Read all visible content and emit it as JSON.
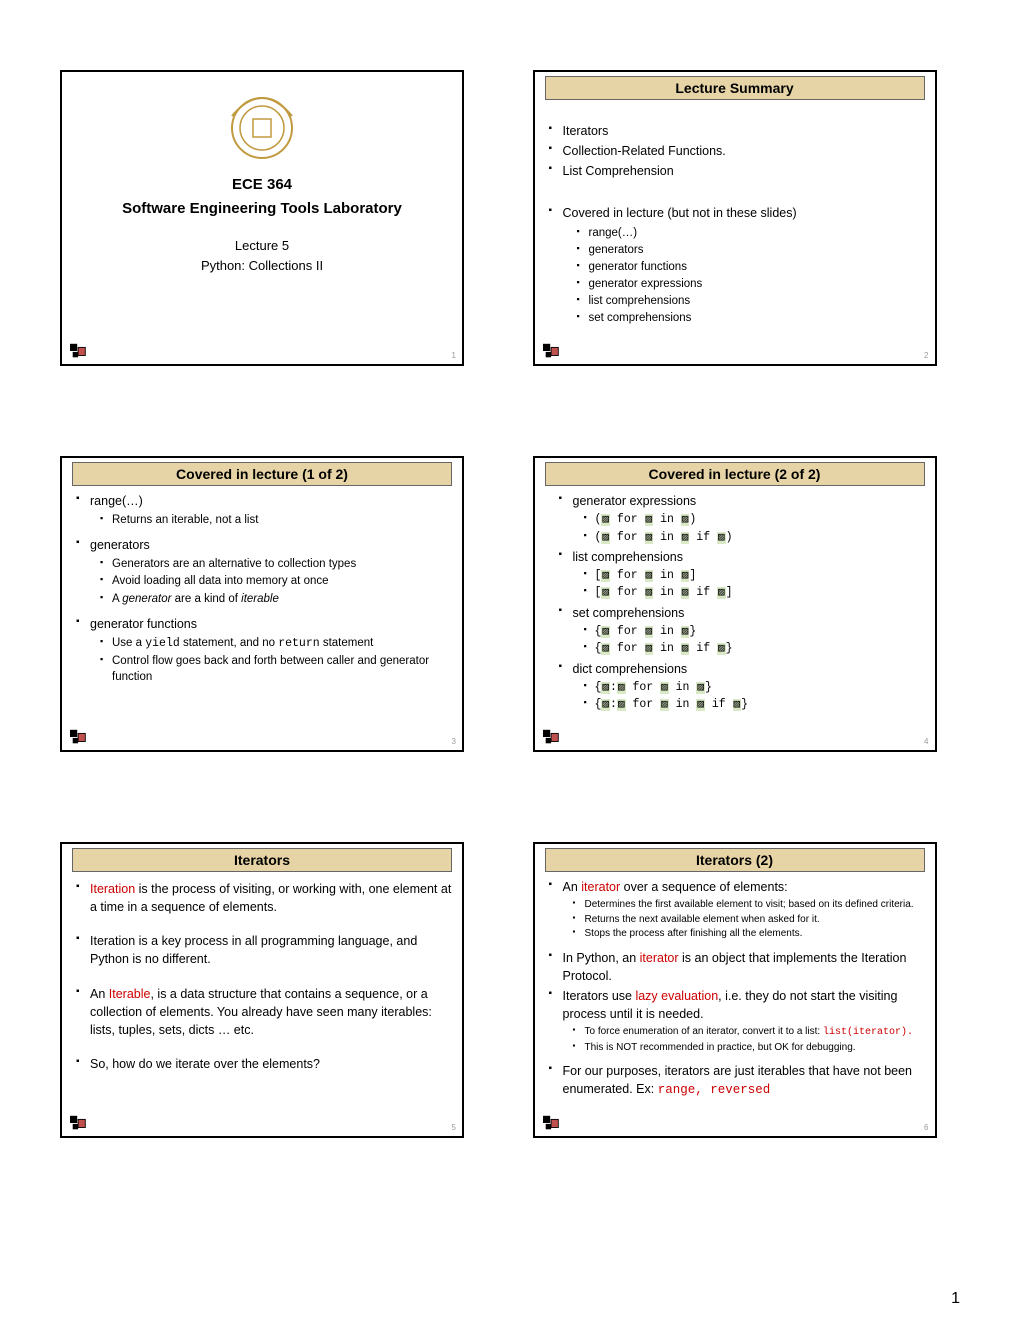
{
  "colors": {
    "title_band_bg": "#e6d4a6",
    "highlight_bg": "#d9e8c5",
    "red_text": "#cc0000",
    "slide_num_color": "#999999",
    "seal_color": "#c19a3f"
  },
  "page_number": "1",
  "slides": [
    {
      "number": "1",
      "course_code": "ECE 364",
      "course_title": "Software Engineering Tools Laboratory",
      "lecture_label": "Lecture 5",
      "lecture_topic": "Python: Collections II"
    },
    {
      "number": "2",
      "title": "Lecture Summary",
      "items_top": [
        "Iterators",
        "Collection-Related Functions.",
        "List Comprehension"
      ],
      "items_covered_label": "Covered in lecture (but not in these slides)",
      "items_covered": [
        "range(…)",
        "generators",
        "generator functions",
        "generator expressions",
        "list comprehensions",
        "set comprehensions"
      ]
    },
    {
      "number": "3",
      "title": "Covered in lecture (1 of 2)",
      "groups": [
        {
          "head": "range(…)",
          "subs": [
            "Returns an iterable, not a list"
          ]
        },
        {
          "head": "generators",
          "subs": [
            "Generators are an alternative to collection types",
            "Avoid loading all data into memory at once",
            {
              "pre": "A ",
              "i1": "generator",
              "mid": " are a kind of ",
              "i2": "iterable"
            }
          ]
        },
        {
          "head": "generator functions",
          "subs": [
            {
              "pre": "Use a ",
              "m1": "yield",
              "mid": " statement, and no ",
              "m2": "return",
              "post": " statement"
            },
            "Control flow goes back and forth between caller and generator function"
          ]
        }
      ]
    },
    {
      "number": "4",
      "title": "Covered in lecture (2 of 2)",
      "groups": [
        {
          "head": "generator expressions",
          "codes": [
            {
              "open": "(",
              "close": ")",
              "hasIf": false
            },
            {
              "open": "(",
              "close": ")",
              "hasIf": true
            }
          ]
        },
        {
          "head": "list comprehensions",
          "codes": [
            {
              "open": "[",
              "close": "]",
              "hasIf": false
            },
            {
              "open": "[",
              "close": "]",
              "hasIf": true
            }
          ]
        },
        {
          "head": "set comprehensions",
          "codes": [
            {
              "open": "{",
              "close": "}",
              "hasIf": false
            },
            {
              "open": "{",
              "close": "}",
              "hasIf": true
            }
          ]
        },
        {
          "head": "dict comprehensions",
          "codes": [
            {
              "open": "{",
              "close": "}",
              "hasIf": false,
              "dict": true
            },
            {
              "open": "{",
              "close": "}",
              "hasIf": true,
              "dict": true
            }
          ]
        }
      ],
      "kw_for": "for",
      "kw_in": "in",
      "kw_if": "if"
    },
    {
      "number": "5",
      "title": "Iterators",
      "paras": [
        {
          "red": "Iteration",
          "rest": " is the process of visiting, or working with, one element at a time in a sequence of elements."
        },
        {
          "plain": "Iteration is a key process in all programming language, and Python is no different."
        },
        {
          "pre": "An ",
          "red": "Iterable",
          "rest": ", is a data structure that contains a sequence, or a collection of elements. You already have seen many iterables: lists, tuples, sets, dicts … etc."
        },
        {
          "plain": "So, how do we iterate over the elements?"
        }
      ]
    },
    {
      "number": "6",
      "title": "Iterators (2)",
      "b1_pre": "An ",
      "b1_red": "iterator",
      "b1_post": " over a sequence of elements:",
      "b1_subs": [
        "Determines the first available element to visit; based on its defined criteria.",
        "Returns the next available element when asked for it.",
        "Stops the process after finishing all the elements."
      ],
      "b2_pre": "In Python, an ",
      "b2_red": "iterator",
      "b2_post": " is an object that implements the Iteration Protocol.",
      "b3_pre": "Iterators use ",
      "b3_red": "lazy evaluation",
      "b3_post": ", i.e. they do not start the visiting process until it is needed.",
      "b3_sub1": "To force enumeration of an iterator, convert it to a list: ",
      "b3_sub1_code": "list(iterator).",
      "b3_sub2": "This is NOT recommended in practice, but OK for debugging.",
      "b4_pre": "For our purposes, iterators are just iterables that have not been enumerated. Ex: ",
      "b4_code": "range, reversed"
    }
  ]
}
